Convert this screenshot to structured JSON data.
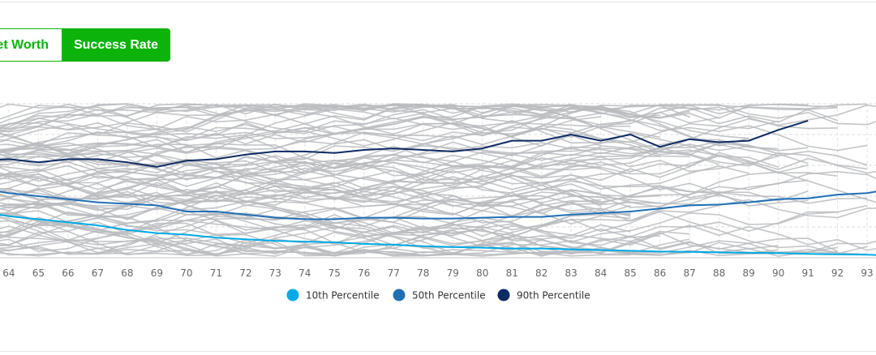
{
  "toggle": {
    "networth_label": "Net Worth",
    "success_label": "Success Rate",
    "active": "Success Rate",
    "accent_color": "#0bb30b"
  },
  "chart_data": {
    "type": "line",
    "title": "",
    "xlabel": "",
    "ylabel": "",
    "grid": true,
    "legend_position": "bottom-center",
    "x_ticks": [
      64,
      65,
      66,
      67,
      68,
      69,
      70,
      71,
      72,
      73,
      74,
      75,
      76,
      77,
      78,
      79,
      80,
      81,
      82,
      83,
      84,
      85,
      86,
      87,
      88,
      89,
      90,
      91,
      92,
      93
    ],
    "xlim": [
      63.7,
      93.3
    ],
    "ylim": [
      0,
      100
    ],
    "background_paths_color": "#b9bbbe",
    "series": [
      {
        "name": "10th Percentile",
        "color": "#00a9e6",
        "x": [
          63,
          64,
          65,
          66,
          67,
          68,
          69,
          70,
          71,
          72,
          73,
          74,
          75,
          76,
          77,
          78,
          79,
          80,
          81,
          82,
          83,
          84,
          85,
          86,
          87,
          88,
          89,
          90,
          91,
          92,
          93,
          93.3
        ],
        "values": [
          30,
          27,
          25,
          23,
          21,
          18,
          16,
          15,
          13,
          12,
          11,
          10.5,
          10,
          9,
          8.5,
          7.5,
          7,
          6.5,
          6,
          6,
          5.5,
          5,
          4.5,
          4,
          3.8,
          3.5,
          3.2,
          3,
          2.5,
          2.2,
          2,
          1.8
        ]
      },
      {
        "name": "50th Percentile",
        "color": "#1f6fb6",
        "x": [
          63,
          64,
          65,
          66,
          67,
          68,
          69,
          70,
          71,
          72,
          73,
          74,
          75,
          76,
          77,
          78,
          79,
          80,
          81,
          82,
          83,
          84,
          85,
          86,
          87,
          88,
          89,
          90,
          91,
          92,
          93,
          93.3
        ],
        "values": [
          45,
          42,
          40,
          38,
          36,
          35,
          34,
          30,
          30,
          28,
          26,
          25,
          25,
          26,
          26,
          25.5,
          25.5,
          26,
          26.5,
          26.5,
          28,
          29,
          30,
          32,
          34,
          34.5,
          36,
          38,
          38.5,
          41,
          42,
          43
        ]
      },
      {
        "name": "90th Percentile",
        "color": "#0d2a63",
        "x": [
          63,
          64,
          65,
          66,
          67,
          68,
          69,
          70,
          71,
          72,
          73,
          74,
          75,
          76,
          77,
          78,
          79,
          80,
          81,
          82,
          83,
          84,
          85,
          86,
          87,
          88,
          89,
          90,
          91
        ],
        "values": [
          63,
          64,
          62,
          64,
          64,
          62,
          59,
          63,
          64,
          67,
          69,
          69,
          68,
          70,
          71,
          70,
          69,
          71,
          76,
          76,
          80,
          76,
          80,
          72,
          77,
          75,
          76,
          83,
          89
        ]
      }
    ]
  }
}
